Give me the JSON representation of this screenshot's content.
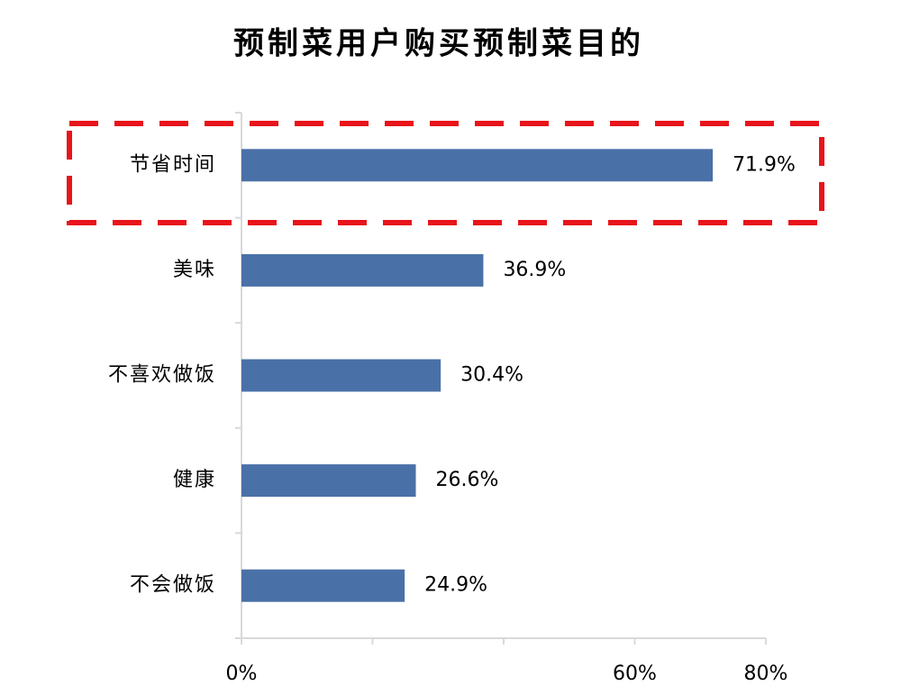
{
  "chart_data": {
    "type": "bar",
    "orientation": "horizontal",
    "title": "预制菜用户购买预制菜目的",
    "categories": [
      "节省时间",
      "美味",
      "不喜欢做饭",
      "健康",
      "不会做饭"
    ],
    "values": [
      71.9,
      36.9,
      30.4,
      26.6,
      24.9
    ],
    "value_labels": [
      "71.9%",
      "36.9%",
      "30.4%",
      "26.6%",
      "24.9%"
    ],
    "color": "#4a70a8",
    "xlim": [
      0,
      80
    ],
    "xticks": [
      {
        "value": 0,
        "label": "0%"
      },
      {
        "value": 20,
        "label": null
      },
      {
        "value": 40,
        "label": null
      },
      {
        "value": 60,
        "label": "60%"
      },
      {
        "value": 80,
        "label": "80%"
      }
    ],
    "grid": false
  }
}
